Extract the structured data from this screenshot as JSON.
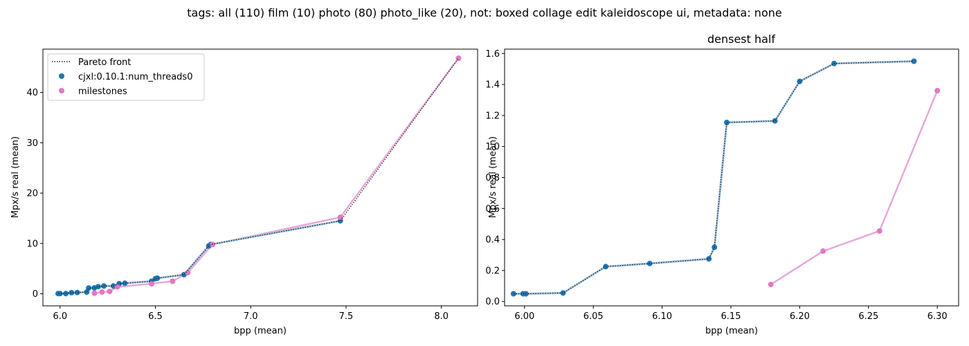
{
  "figure_title": "tags: all (110) film (10) photo (80) photo_like (20), not: boxed collage edit kaleidoscope ui, metadata: none",
  "colors": {
    "series": "#1f77b4",
    "milestones": "#e377c2",
    "milestones_line": "#e8a8d8",
    "pareto": "#222222"
  },
  "chart_data": [
    {
      "type": "scatter",
      "title": "",
      "xlabel": "bpp (mean)",
      "ylabel": "Mpx/s real (mean)",
      "xlim": [
        5.91,
        8.19
      ],
      "ylim": [
        -2.4,
        48.6
      ],
      "xticks": [
        "6.0",
        "6.5",
        "7.0",
        "7.5",
        "8.0"
      ],
      "xtick_values": [
        6.0,
        6.5,
        7.0,
        7.5,
        8.0
      ],
      "yticks": [
        "0",
        "10",
        "20",
        "30",
        "40"
      ],
      "ytick_values": [
        0,
        10,
        20,
        30,
        40
      ],
      "grid": false,
      "legend": {
        "placement": "top-left",
        "entries": [
          "Pareto front",
          "cjxl:0.10.1:num_threads0",
          "milestones"
        ]
      },
      "series": [
        {
          "name": "cjxl:0.10.1:num_threads0",
          "x": [
            5.99,
            6.0,
            6.03,
            6.06,
            6.09,
            6.14,
            6.15,
            6.18,
            6.2,
            6.23,
            6.28,
            6.31,
            6.34,
            6.48,
            6.5,
            6.51,
            6.65,
            6.78,
            6.79,
            7.47
          ],
          "y": [
            0.05,
            0.05,
            0.05,
            0.23,
            0.25,
            0.35,
            1.15,
            1.17,
            1.42,
            1.54,
            1.55,
            2.0,
            2.1,
            2.5,
            3.0,
            3.1,
            3.8,
            9.5,
            9.8,
            14.5
          ]
        },
        {
          "name": "milestones",
          "x": [
            6.18,
            6.22,
            6.26,
            6.3,
            6.48,
            6.59,
            6.67,
            6.8,
            7.47,
            8.09
          ],
          "y": [
            0.11,
            0.33,
            0.46,
            1.36,
            2.0,
            2.5,
            4.2,
            9.8,
            15.2,
            46.8
          ]
        },
        {
          "name": "Pareto front",
          "x": [
            5.99,
            6.0,
            6.03,
            6.06,
            6.09,
            6.14,
            6.15,
            6.18,
            6.2,
            6.23,
            6.28,
            6.31,
            6.34,
            6.48,
            6.5,
            6.51,
            6.65,
            6.78,
            6.79,
            7.47,
            8.09
          ],
          "y": [
            0.05,
            0.05,
            0.05,
            0.23,
            0.25,
            0.35,
            1.15,
            1.17,
            1.42,
            1.54,
            1.55,
            2.0,
            2.1,
            2.5,
            3.0,
            3.1,
            3.8,
            9.5,
            9.8,
            14.5,
            46.8
          ]
        }
      ]
    },
    {
      "type": "scatter",
      "title": "densest half",
      "xlabel": "bpp (mean)",
      "ylabel": "Mpx/s real (mean)",
      "xlim": [
        5.9855,
        6.3155
      ],
      "ylim": [
        -0.028,
        1.628
      ],
      "xticks": [
        "6.00",
        "6.05",
        "6.10",
        "6.15",
        "6.20",
        "6.25",
        "6.30"
      ],
      "xtick_values": [
        6.0,
        6.05,
        6.1,
        6.15,
        6.2,
        6.25,
        6.3
      ],
      "yticks": [
        "0.0",
        "0.2",
        "0.4",
        "0.6",
        "0.8",
        "1.0",
        "1.2",
        "1.4",
        "1.6"
      ],
      "ytick_values": [
        0.0,
        0.2,
        0.4,
        0.6,
        0.8,
        1.0,
        1.2,
        1.4,
        1.6
      ],
      "grid": false,
      "series": [
        {
          "name": "cjxl:0.10.1:num_threads0",
          "x": [
            5.992,
            5.999,
            6.001,
            6.028,
            6.059,
            6.091,
            6.134,
            6.138,
            6.147,
            6.182,
            6.2,
            6.225,
            6.283
          ],
          "y": [
            0.05,
            0.05,
            0.05,
            0.055,
            0.225,
            0.245,
            0.275,
            0.35,
            1.155,
            1.165,
            1.42,
            1.535,
            1.55
          ]
        },
        {
          "name": "milestones",
          "x": [
            6.179,
            6.217,
            6.258,
            6.3
          ],
          "y": [
            0.11,
            0.325,
            0.455,
            1.36
          ]
        },
        {
          "name": "Pareto front",
          "x": [
            5.992,
            5.999,
            6.001,
            6.028,
            6.059,
            6.091,
            6.134,
            6.138,
            6.147,
            6.182,
            6.2,
            6.225,
            6.283
          ],
          "y": [
            0.05,
            0.05,
            0.05,
            0.055,
            0.225,
            0.245,
            0.275,
            0.35,
            1.155,
            1.165,
            1.42,
            1.535,
            1.55
          ]
        }
      ]
    }
  ]
}
